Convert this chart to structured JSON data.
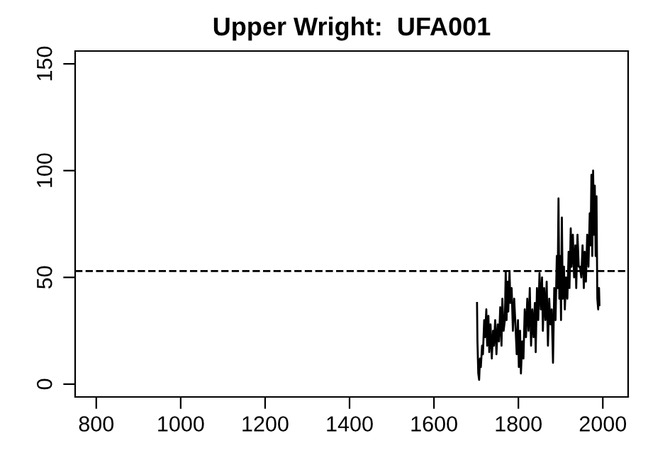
{
  "chart_data": {
    "type": "line",
    "title": "Upper Wright:  UFA001",
    "x": [
      1702,
      1703,
      1705,
      1707,
      1709,
      1711,
      1714,
      1716,
      1719,
      1721,
      1724,
      1726,
      1729,
      1731,
      1734,
      1737,
      1740,
      1742,
      1745,
      1748,
      1751,
      1754,
      1757,
      1760,
      1762,
      1765,
      1768,
      1770,
      1772,
      1774,
      1776,
      1779,
      1781,
      1784,
      1787,
      1790,
      1793,
      1796,
      1799,
      1801,
      1804,
      1806,
      1809,
      1812,
      1815,
      1818,
      1821,
      1824,
      1827,
      1830,
      1833,
      1836,
      1839,
      1841,
      1844,
      1847,
      1850,
      1853,
      1856,
      1858,
      1861,
      1864,
      1867,
      1870,
      1873,
      1876,
      1879,
      1882,
      1885,
      1888,
      1891,
      1893,
      1895,
      1897,
      1899,
      1901,
      1903,
      1905,
      1908,
      1910,
      1913,
      1916,
      1919,
      1921,
      1924,
      1926,
      1929,
      1932,
      1935,
      1937,
      1940,
      1943,
      1946,
      1949,
      1952,
      1955,
      1957,
      1960,
      1963,
      1966,
      1969,
      1971,
      1973,
      1975,
      1977,
      1979,
      1981,
      1983,
      1985,
      1987,
      1989,
      1991,
      1992
    ],
    "series": [
      {
        "color": "#000000",
        "values": [
          38,
          20,
          5,
          2,
          12,
          8,
          18,
          14,
          30,
          22,
          35,
          18,
          32,
          15,
          28,
          12,
          25,
          18,
          30,
          14,
          28,
          20,
          36,
          18,
          40,
          25,
          30,
          53,
          30,
          48,
          34,
          53,
          38,
          45,
          25,
          40,
          28,
          14,
          30,
          8,
          25,
          5,
          20,
          12,
          35,
          22,
          40,
          25,
          45,
          18,
          35,
          22,
          38,
          15,
          45,
          30,
          52,
          35,
          50,
          25,
          45,
          30,
          48,
          18,
          40,
          28,
          35,
          10,
          45,
          30,
          60,
          45,
          87,
          40,
          60,
          30,
          78,
          40,
          55,
          35,
          50,
          40,
          62,
          45,
          73,
          55,
          70,
          50,
          65,
          45,
          70,
          55,
          55,
          50,
          65,
          45,
          62,
          48,
          70,
          55,
          80,
          65,
          98,
          60,
          100,
          70,
          93,
          60,
          88,
          40,
          35,
          45,
          37
        ]
      }
    ],
    "xlim": [
      750,
      2060
    ],
    "ylim": [
      -6,
      156
    ],
    "xticks": [
      800,
      1000,
      1200,
      1400,
      1600,
      1800,
      2000
    ],
    "yticks": [
      0,
      50,
      100,
      150
    ],
    "ref_lines": [
      {
        "axis": "y",
        "value": 53,
        "line_style": "dashed",
        "color": "#000000"
      }
    ],
    "grid": false,
    "legend": false,
    "line_style": "solid",
    "marker": "none"
  }
}
